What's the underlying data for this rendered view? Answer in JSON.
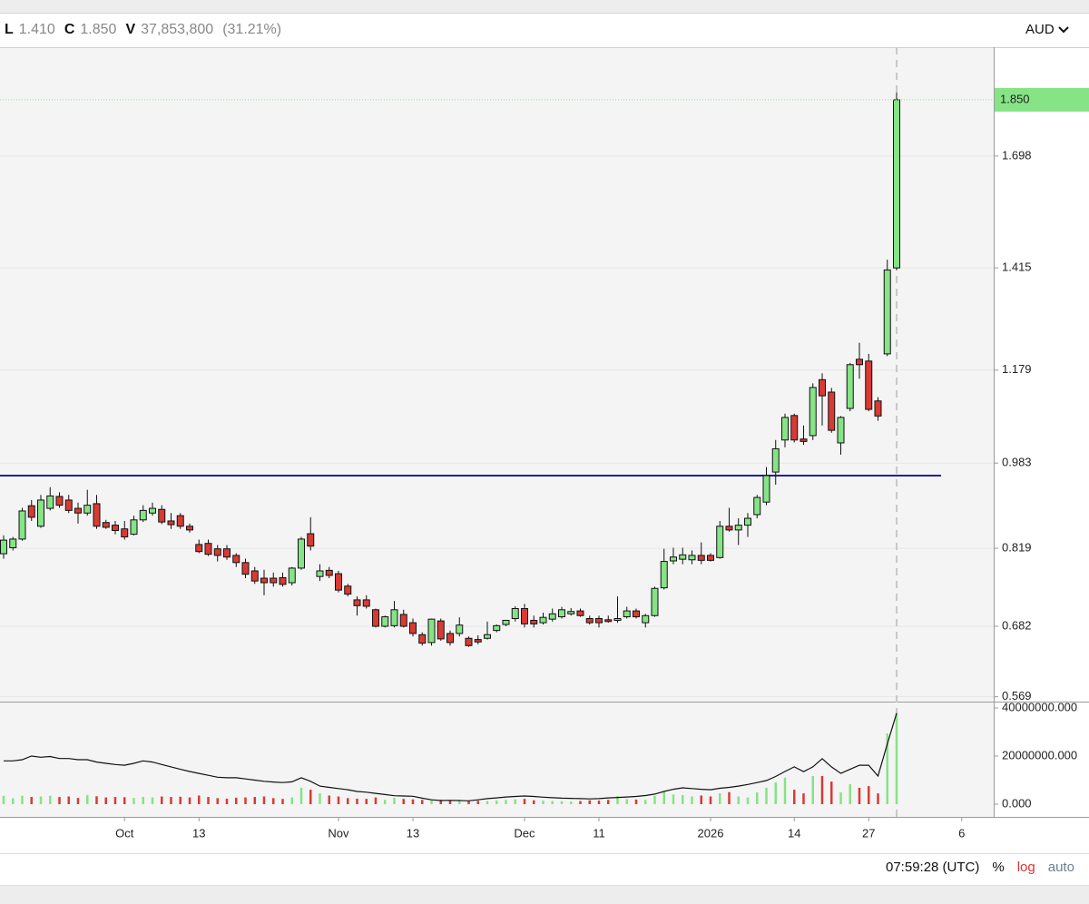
{
  "header": {
    "items": [
      {
        "key": "L",
        "value": "1.410"
      },
      {
        "key": "C",
        "value": "1.850"
      },
      {
        "key": "V",
        "value": "37,853,800"
      }
    ],
    "change": "(31.21%)",
    "currency": "AUD"
  },
  "chart_data": {
    "type": "candlestick",
    "yscale": "sqrt",
    "ylim": [
      0.5616,
      1.998
    ],
    "yticks": [
      0.569,
      0.682,
      0.819,
      0.983,
      1.179,
      1.415,
      1.698
    ],
    "last_price": {
      "value": 1.85,
      "label": "1.850"
    },
    "grid": true,
    "up_color": "#86e386",
    "down_color": "#d83a34",
    "level_line": {
      "value": 0.958,
      "color": "#1d1db0"
    },
    "xlim": [
      -0.39,
      106.44
    ],
    "xticks": [
      {
        "value": 13,
        "label": "Oct"
      },
      {
        "value": 21,
        "label": "13"
      },
      {
        "value": 36,
        "label": "Nov"
      },
      {
        "value": 44,
        "label": "13"
      },
      {
        "value": 56,
        "label": "Dec"
      },
      {
        "value": 64,
        "label": "11"
      },
      {
        "value": 76,
        "label": "2026"
      },
      {
        "value": 85,
        "label": "14"
      },
      {
        "value": 93,
        "label": "27"
      },
      {
        "value": 103,
        "label": "6"
      }
    ],
    "open": [
      0.809,
      0.82,
      0.836,
      0.899,
      0.86,
      0.894,
      0.917,
      0.91,
      0.894,
      0.885,
      0.903,
      0.867,
      0.862,
      0.855,
      0.845,
      0.872,
      0.885,
      0.892,
      0.87,
      0.88,
      0.86,
      0.826,
      0.828,
      0.818,
      0.818,
      0.806,
      0.793,
      0.778,
      0.765,
      0.765,
      0.766,
      0.757,
      0.783,
      0.846,
      0.768,
      0.779,
      0.773,
      0.751,
      0.727,
      0.727,
      0.71,
      0.682,
      0.683,
      0.702,
      0.688,
      0.668,
      0.655,
      0.691,
      0.67,
      0.67,
      0.662,
      0.66,
      0.662,
      0.675,
      0.685,
      0.695,
      0.712,
      0.692,
      0.688,
      0.694,
      0.698,
      0.703,
      0.708,
      0.695,
      0.695,
      0.693,
      0.692,
      0.698,
      0.708,
      0.688,
      0.7,
      0.748,
      0.796,
      0.799,
      0.798,
      0.806,
      0.806,
      0.802,
      0.86,
      0.853,
      0.862,
      0.882,
      0.906,
      0.965,
      1.03,
      1.081,
      1.032,
      1.039,
      1.158,
      1.131,
      1.024,
      1.096,
      1.203,
      1.199,
      1.112,
      1.215,
      1.415
    ],
    "high": [
      0.843,
      0.84,
      0.895,
      0.91,
      0.92,
      0.935,
      0.925,
      0.92,
      0.905,
      0.93,
      0.92,
      0.872,
      0.87,
      0.87,
      0.88,
      0.9,
      0.905,
      0.9,
      0.885,
      0.885,
      0.865,
      0.835,
      0.835,
      0.825,
      0.825,
      0.81,
      0.8,
      0.785,
      0.78,
      0.775,
      0.775,
      0.785,
      0.84,
      0.877,
      0.79,
      0.785,
      0.778,
      0.755,
      0.733,
      0.735,
      0.712,
      0.7,
      0.725,
      0.71,
      0.695,
      0.672,
      0.695,
      0.695,
      0.675,
      0.697,
      0.665,
      0.667,
      0.69,
      0.685,
      0.692,
      0.716,
      0.72,
      0.7,
      0.705,
      0.712,
      0.715,
      0.713,
      0.712,
      0.7,
      0.7,
      0.7,
      0.733,
      0.715,
      0.712,
      0.703,
      0.75,
      0.818,
      0.82,
      0.82,
      0.815,
      0.83,
      0.81,
      0.87,
      0.895,
      0.875,
      0.885,
      0.92,
      0.975,
      1.03,
      1.085,
      1.085,
      1.06,
      1.15,
      1.172,
      1.14,
      1.08,
      1.195,
      1.24,
      1.215,
      1.12,
      1.435,
      1.87
    ],
    "low": [
      0.8,
      0.815,
      0.833,
      0.87,
      0.857,
      0.89,
      0.895,
      0.885,
      0.865,
      0.88,
      0.855,
      0.855,
      0.845,
      0.835,
      0.843,
      0.868,
      0.88,
      0.864,
      0.855,
      0.855,
      0.848,
      0.81,
      0.805,
      0.795,
      0.798,
      0.785,
      0.765,
      0.755,
      0.735,
      0.75,
      0.75,
      0.752,
      0.78,
      0.815,
      0.76,
      0.765,
      0.74,
      0.733,
      0.7,
      0.712,
      0.68,
      0.68,
      0.68,
      0.68,
      0.665,
      0.65,
      0.65,
      0.658,
      0.65,
      0.665,
      0.648,
      0.652,
      0.66,
      0.672,
      0.682,
      0.69,
      0.68,
      0.68,
      0.685,
      0.69,
      0.695,
      0.7,
      0.698,
      0.685,
      0.68,
      0.688,
      0.688,
      0.695,
      0.695,
      0.68,
      0.698,
      0.745,
      0.79,
      0.79,
      0.79,
      0.79,
      0.795,
      0.8,
      0.85,
      0.825,
      0.84,
      0.875,
      0.9,
      0.94,
      1.015,
      1.025,
      1.02,
      1.03,
      1.06,
      1.045,
      1.0,
      1.09,
      1.16,
      1.09,
      1.07,
      1.21,
      1.41
    ],
    "close": [
      0.834,
      0.836,
      0.889,
      0.877,
      0.91,
      0.918,
      0.9,
      0.89,
      0.885,
      0.9,
      0.86,
      0.858,
      0.852,
      0.84,
      0.872,
      0.89,
      0.894,
      0.868,
      0.863,
      0.86,
      0.853,
      0.813,
      0.808,
      0.806,
      0.803,
      0.793,
      0.772,
      0.76,
      0.757,
      0.757,
      0.754,
      0.783,
      0.836,
      0.823,
      0.778,
      0.77,
      0.744,
      0.737,
      0.717,
      0.716,
      0.682,
      0.698,
      0.71,
      0.682,
      0.67,
      0.654,
      0.694,
      0.661,
      0.655,
      0.684,
      0.65,
      0.656,
      0.668,
      0.683,
      0.692,
      0.712,
      0.686,
      0.686,
      0.697,
      0.703,
      0.71,
      0.707,
      0.7,
      0.688,
      0.688,
      0.69,
      0.695,
      0.708,
      0.698,
      0.7,
      0.747,
      0.795,
      0.803,
      0.807,
      0.806,
      0.797,
      0.797,
      0.86,
      0.853,
      0.862,
      0.875,
      0.915,
      0.958,
      1.012,
      1.077,
      1.03,
      1.027,
      1.141,
      1.123,
      1.05,
      1.077,
      1.191,
      1.191,
      1.094,
      1.08,
      1.41,
      1.85
    ],
    "volume": {
      "ylim": [
        -5280000,
        42640000
      ],
      "yticks": [
        {
          "value": 0,
          "label": "0.000"
        },
        {
          "value": 20000000,
          "label": "20000000.000"
        },
        {
          "value": 40000000,
          "label": "40000000.000"
        }
      ],
      "values": [
        3500000,
        2500000,
        3500000,
        3000000,
        3200000,
        3500000,
        3000000,
        3200000,
        2600000,
        3800000,
        3300000,
        2800000,
        3000000,
        2900000,
        2600000,
        3000000,
        2800000,
        3200000,
        3000000,
        3100000,
        2800000,
        3600000,
        3000000,
        2500000,
        2300000,
        2700000,
        2800000,
        3000000,
        3200000,
        2500000,
        2200000,
        2800000,
        6800000,
        6000000,
        4500000,
        3600000,
        3200000,
        2500000,
        2300000,
        2200000,
        2800000,
        1800000,
        2600000,
        2200000,
        2000000,
        1800000,
        1600000,
        1800000,
        1500000,
        1600000,
        1200000,
        1400000,
        1300000,
        1500000,
        1800000,
        2000000,
        2200000,
        1600000,
        1500000,
        1300000,
        1200000,
        1100000,
        1300000,
        1600000,
        1500000,
        1800000,
        3300000,
        2100000,
        1900000,
        1800000,
        3500000,
        5000000,
        4000000,
        3800000,
        3200000,
        3600000,
        3200000,
        4500000,
        5000000,
        3200000,
        2800000,
        4900000,
        6800000,
        9000000,
        11000000,
        6000000,
        4500000,
        11700000,
        11700000,
        9400000,
        4900000,
        8300000,
        6800000,
        7500000,
        4500000,
        29400000,
        37853800
      ],
      "ma": [
        18000000,
        18000000,
        18500000,
        20000000,
        19500000,
        19800000,
        19000000,
        19000000,
        18500000,
        18500000,
        17500000,
        17000000,
        16500000,
        16200000,
        17000000,
        18000000,
        17500000,
        16500000,
        15500000,
        14500000,
        13600000,
        12800000,
        12000000,
        11200000,
        11000000,
        11000000,
        10500000,
        10000000,
        9500000,
        9200000,
        9000000,
        9300000,
        11000000,
        9500000,
        7500000,
        7000000,
        6500000,
        6000000,
        5300000,
        5000000,
        4500000,
        4000000,
        3500000,
        3400000,
        3300000,
        2500000,
        1800000,
        1500000,
        1600000,
        1500000,
        1400000,
        1800000,
        2300000,
        2600000,
        3000000,
        3200000,
        3400000,
        3200000,
        2900000,
        2700000,
        2500000,
        2400000,
        2300000,
        2200000,
        2300000,
        2600000,
        2800000,
        3000000,
        3200000,
        3600000,
        4200000,
        5300000,
        6200000,
        6800000,
        6500000,
        6200000,
        6000000,
        6600000,
        7000000,
        7500000,
        8200000,
        9000000,
        9800000,
        11500000,
        13600000,
        15500000,
        13500000,
        15500000,
        18900000,
        15500000,
        12800000,
        14500000,
        16200000,
        16200000,
        11700000,
        25000000,
        37800000
      ]
    }
  },
  "footer": {
    "time": "07:59:28 (UTC)",
    "buttons": [
      "%",
      "log",
      "auto"
    ]
  }
}
